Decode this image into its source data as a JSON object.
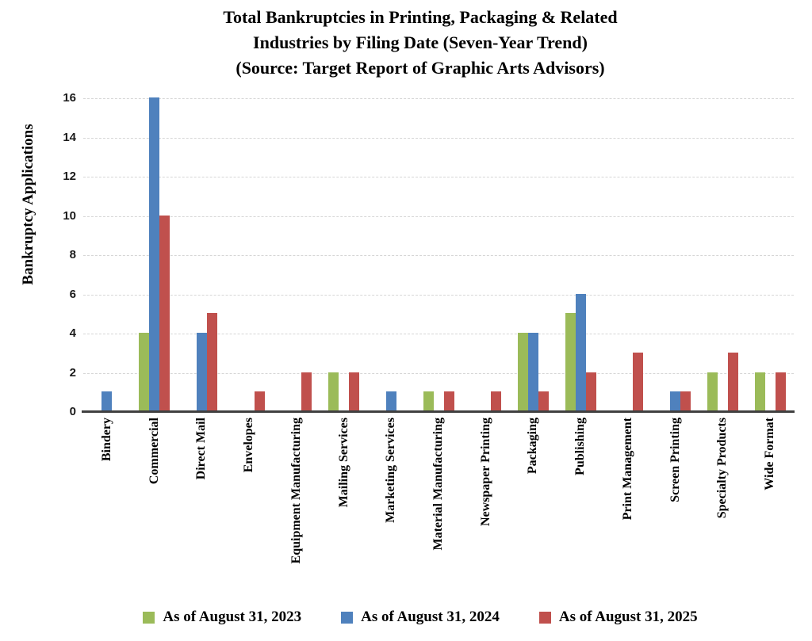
{
  "title": {
    "line1": "Total Bankruptcies in Printing, Packaging & Related",
    "line2": "Industries by Filing Date (Seven-Year Trend)",
    "line3": "(Source: Target Report of Graphic Arts Advisors)"
  },
  "y_axis": {
    "title": "Bankruptcy Applications",
    "ticks": [
      0,
      2,
      4,
      6,
      8,
      10,
      12,
      14,
      16
    ]
  },
  "colors": {
    "series_2023": "#9BBB59",
    "series_2024": "#4F81BD",
    "series_2025": "#C0504D",
    "gridline": "#D6D6D6",
    "axis_line": "#404040"
  },
  "chart_data": {
    "type": "bar",
    "title": "Total Bankruptcies in Printing, Packaging & Related Industries by Filing Date (Seven-Year Trend) (Source: Target Report of Graphic Arts Advisors)",
    "xlabel": "",
    "ylabel": "Bankruptcy Applications",
    "ylim": [
      0,
      16
    ],
    "ytick_step": 2,
    "grid": true,
    "legend_position": "bottom",
    "categories": [
      "Bindery",
      "Commercial",
      "Direct Mail",
      "Envelopes",
      "Equipment Manufacturing",
      "Mailing Services",
      "Marketing Services",
      "Material Manufacturing",
      "Newspaper Printing",
      "Packaging",
      "Publishing",
      "Print Management",
      "Screen Printing",
      "Specialty Products",
      "Wide Format"
    ],
    "series": [
      {
        "name": "As of August 31, 2023",
        "color": "#9BBB59",
        "values": [
          0,
          4,
          0,
          0,
          0,
          2,
          0,
          1,
          0,
          4,
          5,
          0,
          0,
          2,
          2
        ]
      },
      {
        "name": "As of August 31, 2024",
        "color": "#4F81BD",
        "values": [
          1,
          16,
          4,
          0,
          0,
          0,
          1,
          0,
          0,
          4,
          6,
          0,
          1,
          0,
          0
        ]
      },
      {
        "name": "As of August 31, 2025",
        "color": "#C0504D",
        "values": [
          0,
          10,
          5,
          1,
          2,
          2,
          0,
          1,
          1,
          1,
          2,
          3,
          1,
          3,
          2
        ]
      }
    ]
  }
}
